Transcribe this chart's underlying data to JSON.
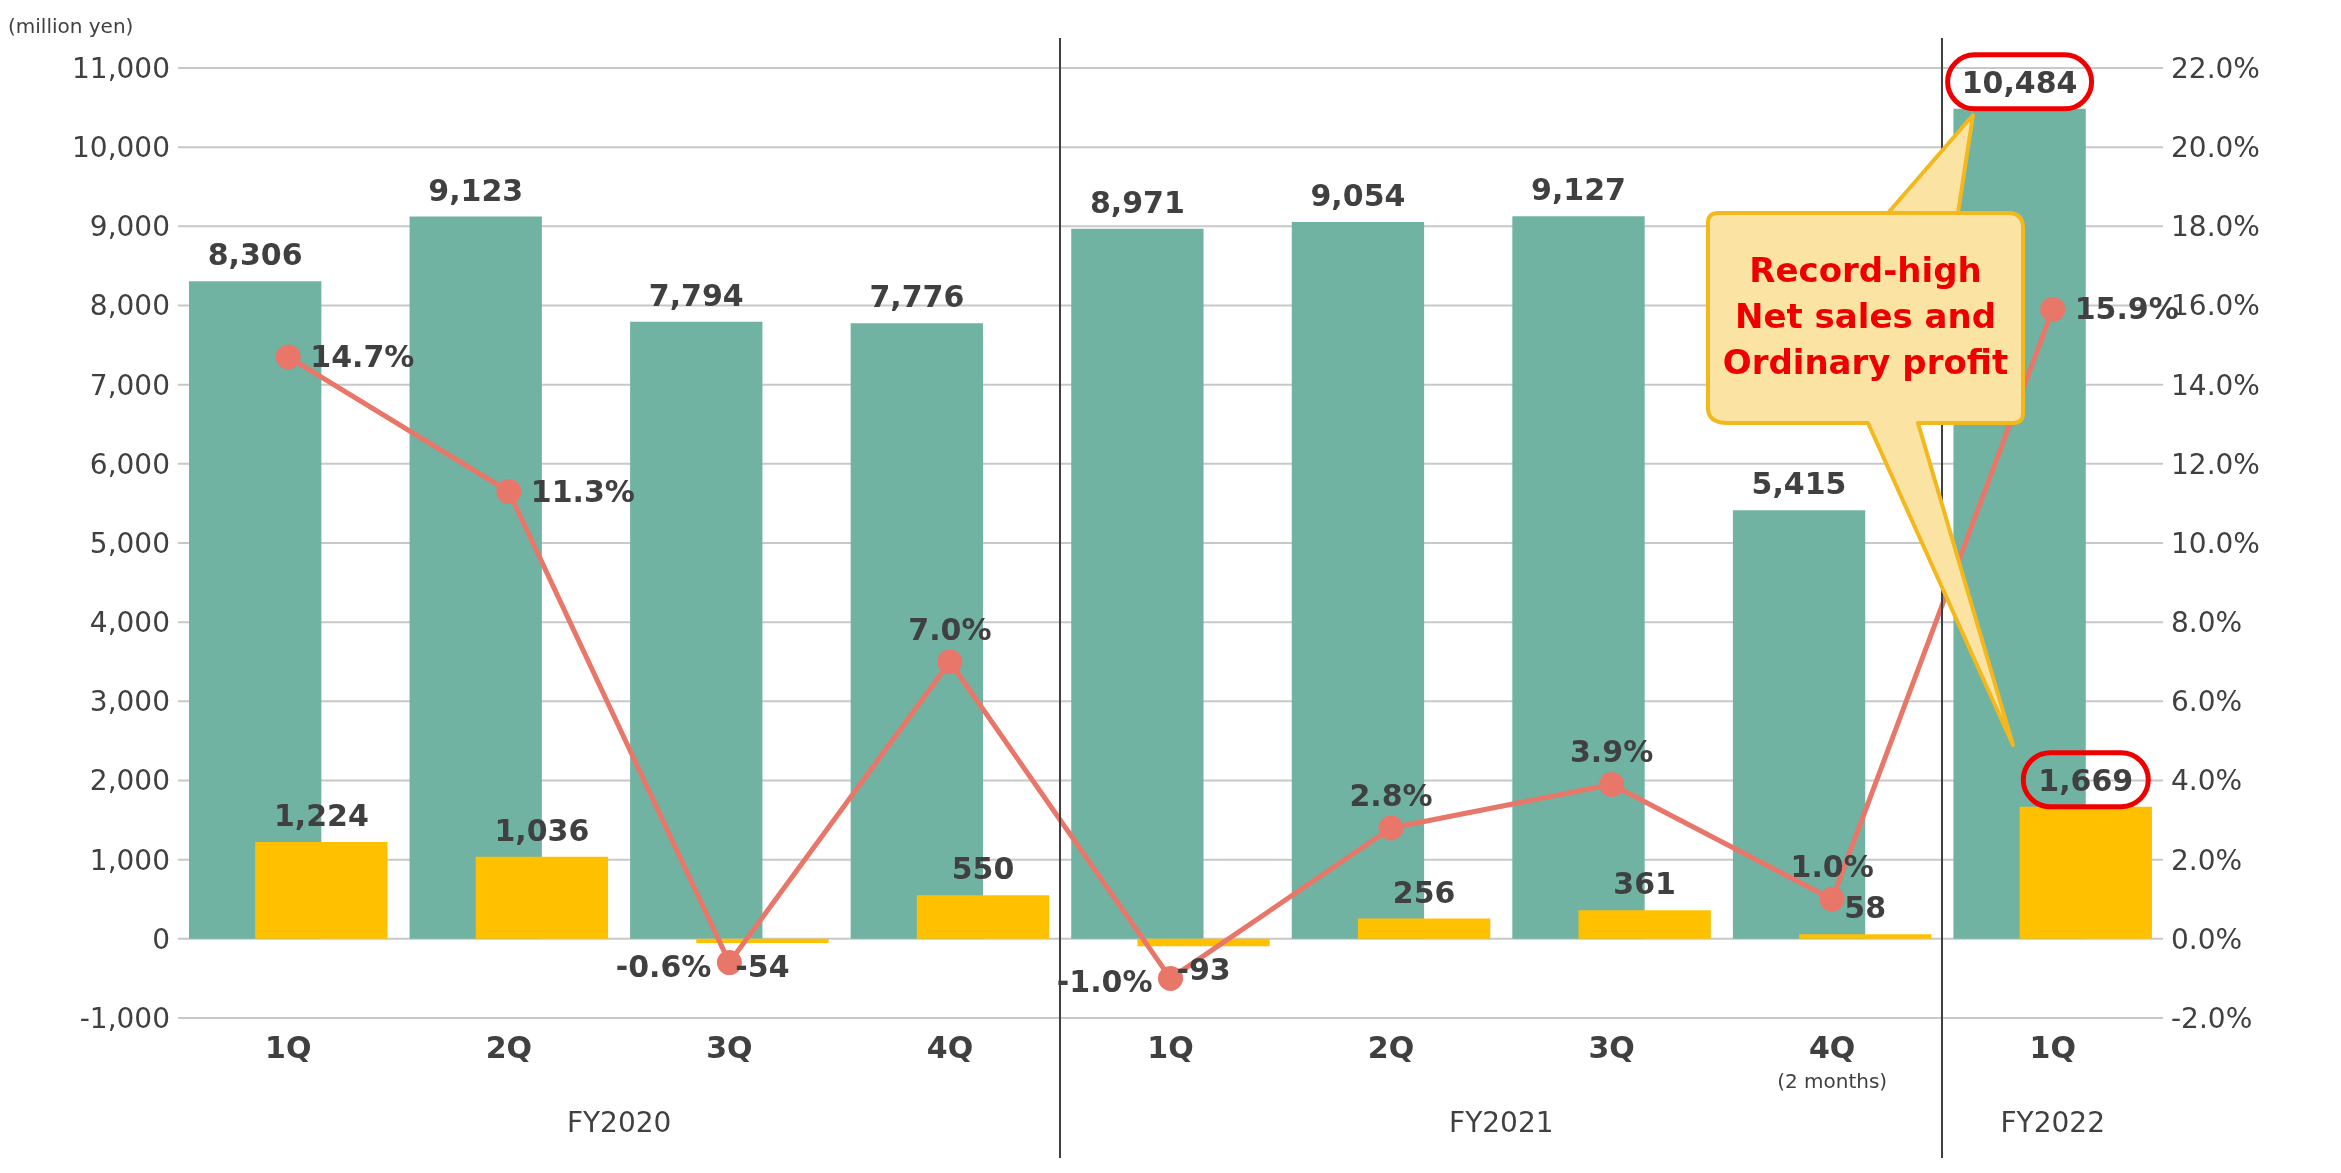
{
  "chart_data": {
    "type": "bar",
    "ylabel": "(million yen)",
    "categories": [
      "1Q",
      "2Q",
      "3Q",
      "4Q",
      "1Q",
      "2Q",
      "3Q",
      "4Q\n(2 months)",
      "1Q"
    ],
    "series": [
      {
        "color": "#70b3a3",
        "values": [
          8306,
          9123,
          7794,
          7776,
          8971,
          9054,
          9127,
          5415,
          10484
        ],
        "value_labels": [
          "8,306",
          "9,123",
          "7,794",
          "7,776",
          "8,971",
          "9,054",
          "9,127",
          "5,415",
          "10,484"
        ]
      },
      {
        "color": "#ffc000",
        "values": [
          1224,
          1036,
          -54,
          550,
          -93,
          256,
          361,
          58,
          1669
        ],
        "value_labels": [
          "1,224",
          "1,036",
          "-54",
          "550",
          "-93",
          "256",
          "361",
          "58",
          "1,669"
        ]
      },
      {
        "type": "line",
        "axis": "y2",
        "color": "#e8776a",
        "values": [
          14.7,
          11.3,
          -0.6,
          7.0,
          -1.0,
          2.8,
          3.9,
          1.0,
          15.9
        ],
        "value_labels": [
          "14.7%",
          "11.3%",
          "-0.6%",
          "7.0%",
          "-1.0%",
          "2.8%",
          "3.9%",
          "1.0%",
          "15.9%"
        ]
      }
    ],
    "ylim": [
      -1000,
      11000
    ],
    "yticks": [
      {
        "value": -1000,
        "label": "-1,000"
      },
      0,
      {
        "value": 1000,
        "label": "1,000"
      },
      {
        "value": 2000,
        "label": "2,000"
      },
      {
        "value": 3000,
        "label": "3,000"
      },
      {
        "value": 4000,
        "label": "4,000"
      },
      {
        "value": 5000,
        "label": "5,000"
      },
      {
        "value": 6000,
        "label": "6,000"
      },
      {
        "value": 7000,
        "label": "7,000"
      },
      {
        "value": 8000,
        "label": "8,000"
      },
      {
        "value": 9000,
        "label": "9,000"
      },
      {
        "value": 10000,
        "label": "10,000"
      },
      {
        "value": 11000,
        "label": "11,000"
      }
    ],
    "y2lim": [
      -2,
      22
    ],
    "y2ticks": [
      {
        "value": -2,
        "label": "-2.0%"
      },
      {
        "value": 0,
        "label": "0.0%"
      },
      {
        "value": 2,
        "label": "2.0%"
      },
      {
        "value": 4,
        "label": "4.0%"
      },
      {
        "value": 6,
        "label": "6.0%"
      },
      {
        "value": 8,
        "label": "8.0%"
      },
      {
        "value": 10,
        "label": "10.0%"
      },
      {
        "value": 12,
        "label": "12.0%"
      },
      {
        "value": 14,
        "label": "14.0%"
      },
      {
        "value": 16,
        "label": "16.0%"
      },
      {
        "value": 18,
        "label": "18.0%"
      },
      {
        "value": 20,
        "label": "20.0%"
      },
      {
        "value": 22,
        "label": "22.0%"
      }
    ],
    "grid": "y",
    "marker": "circle",
    "line_style": "solid",
    "legend": false,
    "annotations": [
      "FY2020",
      "FY2021",
      "FY2022",
      "Record-high Net sales and Ordinary profit"
    ]
  }
}
